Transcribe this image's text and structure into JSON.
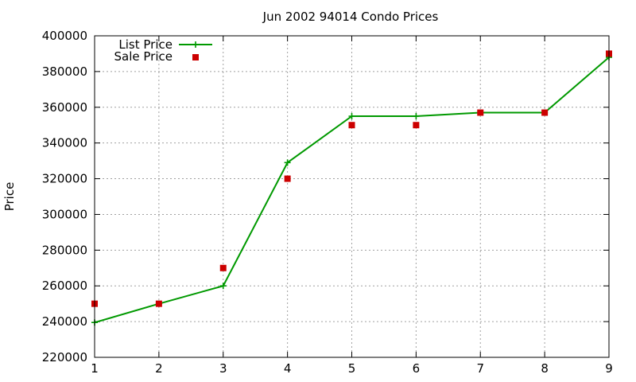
{
  "chart_data": {
    "type": "line",
    "title": "Jun 2002 94014 Condo Prices",
    "xlabel": "",
    "ylabel": "Price",
    "xlim": [
      1,
      9
    ],
    "ylim": [
      220000,
      400000
    ],
    "x_ticks": [
      1,
      2,
      3,
      4,
      5,
      6,
      7,
      8,
      9
    ],
    "y_ticks": [
      220000,
      240000,
      260000,
      280000,
      300000,
      320000,
      340000,
      360000,
      380000,
      400000
    ],
    "grid": true,
    "legend_position": "top-left",
    "x": [
      1,
      2,
      3,
      4,
      5,
      6,
      7,
      8,
      9
    ],
    "series": [
      {
        "name": "List Price",
        "style": "line-with-plus-markers",
        "color": "#009900",
        "values": [
          239500,
          250000,
          260000,
          329000,
          355000,
          355000,
          357000,
          357000,
          388000
        ]
      },
      {
        "name": "Sale Price",
        "style": "square-markers",
        "color": "#cc0000",
        "values": [
          250000,
          250000,
          270000,
          320000,
          350000,
          350000,
          357000,
          357000,
          390000
        ]
      }
    ]
  }
}
